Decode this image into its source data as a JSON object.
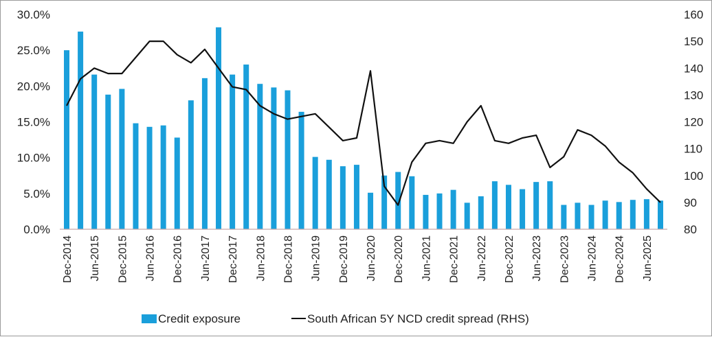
{
  "chart_data": {
    "type": "bar",
    "title": "",
    "xlabel": "",
    "ylabel": "",
    "y2label": "",
    "ylim": [
      0,
      30
    ],
    "y2lim": [
      80,
      160
    ],
    "yticks": [
      "0.0%",
      "5.0%",
      "10.0%",
      "15.0%",
      "20.0%",
      "25.0%",
      "30.0%"
    ],
    "y2ticks": [
      "80",
      "90",
      "100",
      "110",
      "120",
      "130",
      "140",
      "150",
      "160"
    ],
    "xtick_labels": [
      "Dec-2014",
      "Jun-2015",
      "Dec-2015",
      "Jun-2016",
      "Dec-2016",
      "Jun-2017",
      "Dec-2017",
      "Jun-2018",
      "Dec-2018",
      "Jun-2019",
      "Dec-2019",
      "Jun-2020",
      "Dec-2020",
      "Jun-2021",
      "Dec-2021",
      "Jun-2022",
      "Dec-2022",
      "Jun-2023",
      "Dec-2023",
      "Jun-2024",
      "Dec-2024",
      "Jun-2025"
    ],
    "xtick_every": 2,
    "categories": [
      "Dec-2014",
      "Mar-2015",
      "Jun-2015",
      "Sep-2015",
      "Dec-2015",
      "Mar-2016",
      "Jun-2016",
      "Sep-2016",
      "Dec-2016",
      "Mar-2017",
      "Jun-2017",
      "Sep-2017",
      "Dec-2017",
      "Mar-2018",
      "Jun-2018",
      "Sep-2018",
      "Dec-2018",
      "Mar-2019",
      "Jun-2019",
      "Sep-2019",
      "Dec-2019",
      "Mar-2020",
      "Jun-2020",
      "Sep-2020",
      "Dec-2020",
      "Mar-2021",
      "Jun-2021",
      "Sep-2021",
      "Dec-2021",
      "Mar-2022",
      "Jun-2022",
      "Sep-2022",
      "Dec-2022",
      "Mar-2023",
      "Jun-2023",
      "Sep-2023",
      "Dec-2023",
      "Mar-2024",
      "Jun-2024",
      "Sep-2024",
      "Dec-2024",
      "Mar-2025",
      "Jun-2025",
      "Sep-2025"
    ],
    "series": [
      {
        "name": "Credit exposure",
        "type": "bar",
        "axis": "left",
        "unit": "%",
        "color": "#1a9fdb",
        "values": [
          25.0,
          27.6,
          21.6,
          18.8,
          19.6,
          14.8,
          14.3,
          14.5,
          12.8,
          18.0,
          21.1,
          28.2,
          21.6,
          23.0,
          20.3,
          19.8,
          19.4,
          16.4,
          10.1,
          9.7,
          8.8,
          9.0,
          5.1,
          7.5,
          8.0,
          7.4,
          4.8,
          5.0,
          5.5,
          3.7,
          4.6,
          6.7,
          6.2,
          5.6,
          6.6,
          6.7,
          3.4,
          3.7,
          3.4,
          4.0,
          3.8,
          4.1,
          4.2,
          4.0
        ]
      },
      {
        "name": "South African 5Y NCD credit spread (RHS)",
        "type": "line",
        "axis": "right",
        "color": "#111111",
        "values": [
          126,
          136,
          140,
          138,
          138,
          144,
          150,
          150,
          145,
          142,
          147,
          140,
          133,
          132,
          126,
          123,
          121,
          122,
          123,
          118,
          113,
          114,
          139,
          96,
          89,
          105,
          112,
          113,
          112,
          120,
          126,
          113,
          112,
          114,
          115,
          103,
          107,
          117,
          115,
          111,
          105,
          101,
          95,
          90
        ]
      }
    ],
    "legend": {
      "position": "bottom",
      "items": [
        "Credit exposure",
        "South African 5Y NCD credit spread (RHS)"
      ]
    },
    "grid": false
  }
}
